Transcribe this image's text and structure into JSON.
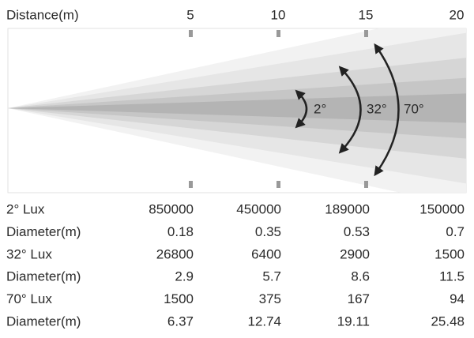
{
  "header": {
    "label": "Distance(m)",
    "distances": [
      "5",
      "10",
      "15",
      "20"
    ]
  },
  "beam_labels": [
    "2°",
    "32°",
    "70°"
  ],
  "table": {
    "rows": [
      [
        "2°  Lux",
        "850000",
        "450000",
        "189000",
        "150000"
      ],
      [
        "Diameter(m)",
        "0.18",
        "0.35",
        "0.53",
        "0.7"
      ],
      [
        "32°  Lux",
        "26800",
        "6400",
        "2900",
        "1500"
      ],
      [
        "Diameter(m)",
        "2.9",
        "5.7",
        "8.6",
        "11.5"
      ],
      [
        "70°  Lux",
        "1500",
        "375",
        "167",
        "94"
      ],
      [
        "Diameter(m)",
        "6.37",
        "12.74",
        "19.11",
        "25.48"
      ]
    ]
  }
}
